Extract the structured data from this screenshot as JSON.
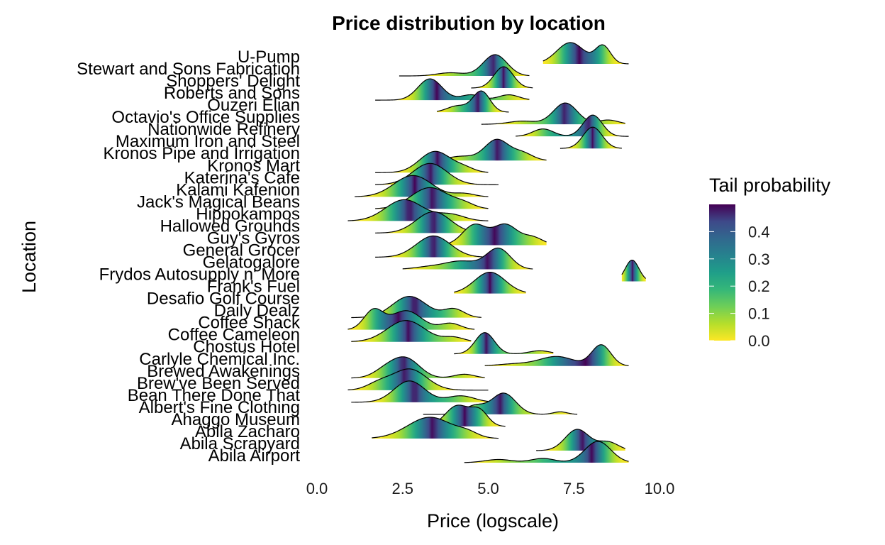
{
  "chart_data": {
    "type": "ridgeline",
    "title": "Price distribution by location",
    "xlabel": "Price (logscale)",
    "ylabel": "Location",
    "xlim": [
      0,
      10
    ],
    "x_ticks": [
      "0.0",
      "2.5",
      "5.0",
      "7.5",
      "10.0"
    ],
    "grid": false,
    "fill_scale": "viridis (reversed)",
    "legend": {
      "title": "Tail probability",
      "position": "right",
      "ticks": [
        "0.0",
        "0.1",
        "0.2",
        "0.3",
        "0.4"
      ],
      "range": [
        0,
        0.5
      ]
    },
    "locations": [
      {
        "name": "U-Pump",
        "components": [
          {
            "mu": 7.4,
            "sd": 0.4,
            "w": 0.6
          },
          {
            "mu": 8.35,
            "sd": 0.22,
            "w": 0.5
          }
        ],
        "range": [
          6.6,
          9.1
        ]
      },
      {
        "name": "Stewart and Sons Fabrication",
        "components": [
          {
            "mu": 5.2,
            "sd": 0.35,
            "w": 1.0
          },
          {
            "mu": 3.9,
            "sd": 0.4,
            "w": 0.15
          }
        ],
        "range": [
          2.4,
          6.2
        ]
      },
      {
        "name": "Shoppers' Delight",
        "components": [
          {
            "mu": 5.45,
            "sd": 0.28,
            "w": 1.0
          }
        ],
        "range": [
          4.5,
          6.3
        ]
      },
      {
        "name": "Roberts and Sons",
        "components": [
          {
            "mu": 3.3,
            "sd": 0.35,
            "w": 1.0
          },
          {
            "mu": 4.5,
            "sd": 0.3,
            "w": 0.25
          },
          {
            "mu": 5.6,
            "sd": 0.3,
            "w": 0.25
          }
        ],
        "range": [
          1.7,
          6.2
        ]
      },
      {
        "name": "Ouzeri Elian",
        "components": [
          {
            "mu": 4.8,
            "sd": 0.25,
            "w": 1.0
          },
          {
            "mu": 4.1,
            "sd": 0.3,
            "w": 0.3
          }
        ],
        "range": [
          3.5,
          5.6
        ]
      },
      {
        "name": "Octavio's Office Supplies",
        "components": [
          {
            "mu": 7.25,
            "sd": 0.35,
            "w": 1.0
          },
          {
            "mu": 6.0,
            "sd": 0.4,
            "w": 0.15
          },
          {
            "mu": 8.5,
            "sd": 0.3,
            "w": 0.2
          }
        ],
        "range": [
          4.8,
          9.0
        ]
      },
      {
        "name": "Nationwide Refinery",
        "components": [
          {
            "mu": 8.05,
            "sd": 0.28,
            "w": 1.0
          },
          {
            "mu": 6.6,
            "sd": 0.3,
            "w": 0.35
          }
        ],
        "range": [
          5.8,
          9.1
        ]
      },
      {
        "name": "Maximum Iron and Steel",
        "components": [
          {
            "mu": 8.05,
            "sd": 0.28,
            "w": 1.0
          }
        ],
        "range": [
          7.1,
          8.9
        ]
      },
      {
        "name": "Kronos Pipe and Irrigation",
        "components": [
          {
            "mu": 5.25,
            "sd": 0.35,
            "w": 1.0
          },
          {
            "mu": 6.0,
            "sd": 0.3,
            "w": 0.35
          },
          {
            "mu": 4.2,
            "sd": 0.4,
            "w": 0.2
          }
        ],
        "range": [
          3.3,
          6.7
        ]
      },
      {
        "name": "Kronos Mart",
        "components": [
          {
            "mu": 3.45,
            "sd": 0.45,
            "w": 1.0
          },
          {
            "mu": 4.3,
            "sd": 0.3,
            "w": 0.2
          }
        ],
        "range": [
          1.7,
          5.0
        ]
      },
      {
        "name": "Katerina's Cafe",
        "components": [
          {
            "mu": 3.3,
            "sd": 0.5,
            "w": 1.0
          }
        ],
        "range": [
          1.7,
          5.3
        ]
      },
      {
        "name": "Kalami Kafenion",
        "components": [
          {
            "mu": 2.8,
            "sd": 0.55,
            "w": 1.0
          },
          {
            "mu": 4.3,
            "sd": 0.3,
            "w": 0.15
          }
        ],
        "range": [
          1.1,
          5.0
        ]
      },
      {
        "name": "Jack's Magical Beans",
        "components": [
          {
            "mu": 3.3,
            "sd": 0.55,
            "w": 1.0
          },
          {
            "mu": 4.3,
            "sd": 0.3,
            "w": 0.2
          }
        ],
        "range": [
          1.7,
          5.0
        ]
      },
      {
        "name": "Hippokampos",
        "components": [
          {
            "mu": 2.55,
            "sd": 0.55,
            "w": 1.0
          },
          {
            "mu": 3.9,
            "sd": 0.4,
            "w": 0.3
          }
        ],
        "range": [
          0.9,
          5.0
        ]
      },
      {
        "name": "Hallowed Grounds",
        "components": [
          {
            "mu": 3.4,
            "sd": 0.5,
            "w": 1.0
          }
        ],
        "range": [
          1.7,
          5.0
        ]
      },
      {
        "name": "Guy's Gyros",
        "components": [
          {
            "mu": 4.6,
            "sd": 0.35,
            "w": 0.8
          },
          {
            "mu": 5.5,
            "sd": 0.35,
            "w": 0.8
          },
          {
            "mu": 6.3,
            "sd": 0.3,
            "w": 0.3
          }
        ],
        "range": [
          3.5,
          6.7
        ]
      },
      {
        "name": "General Grocer",
        "components": [
          {
            "mu": 3.4,
            "sd": 0.5,
            "w": 1.0
          }
        ],
        "range": [
          1.7,
          5.0
        ]
      },
      {
        "name": "Gelatogalore",
        "components": [
          {
            "mu": 5.3,
            "sd": 0.35,
            "w": 1.0
          },
          {
            "mu": 4.2,
            "sd": 0.5,
            "w": 0.4
          },
          {
            "mu": 3.2,
            "sd": 0.4,
            "w": 0.1
          }
        ],
        "range": [
          2.5,
          6.3
        ]
      },
      {
        "name": "Frydos Autosupply n' More",
        "components": [
          {
            "mu": 9.2,
            "sd": 0.2,
            "w": 0.4
          }
        ],
        "range": [
          8.9,
          9.6
        ]
      },
      {
        "name": "Frank's Fuel",
        "components": [
          {
            "mu": 5.05,
            "sd": 0.45,
            "w": 1.0
          }
        ],
        "range": [
          4.0,
          6.1
        ]
      },
      {
        "name": "Desafio Golf Course",
        "components": [],
        "range": [
          0,
          0
        ]
      },
      {
        "name": "Daily Dealz",
        "components": [
          {
            "mu": 2.7,
            "sd": 0.5,
            "w": 1.0
          },
          {
            "mu": 4.0,
            "sd": 0.3,
            "w": 0.4
          }
        ],
        "range": [
          1.0,
          4.8
        ]
      },
      {
        "name": "Coffee Shack",
        "components": [
          {
            "mu": 1.65,
            "sd": 0.28,
            "w": 0.9
          },
          {
            "mu": 2.6,
            "sd": 0.45,
            "w": 0.9
          },
          {
            "mu": 3.9,
            "sd": 0.3,
            "w": 0.3
          }
        ],
        "range": [
          0.9,
          4.6
        ]
      },
      {
        "name": "Coffee Cameleon",
        "components": [
          {
            "mu": 2.6,
            "sd": 0.55,
            "w": 1.0
          },
          {
            "mu": 4.0,
            "sd": 0.3,
            "w": 0.2
          }
        ],
        "range": [
          1.0,
          4.5
        ]
      },
      {
        "name": "Chostus Hotel",
        "components": [
          {
            "mu": 4.9,
            "sd": 0.28,
            "w": 1.0
          },
          {
            "mu": 6.5,
            "sd": 0.3,
            "w": 0.15
          }
        ],
        "range": [
          4.0,
          6.9
        ]
      },
      {
        "name": "Carlyle Chemical Inc.",
        "components": [
          {
            "mu": 8.3,
            "sd": 0.28,
            "w": 1.0
          },
          {
            "mu": 7.0,
            "sd": 0.5,
            "w": 0.45
          },
          {
            "mu": 5.8,
            "sd": 0.5,
            "w": 0.1
          }
        ],
        "range": [
          4.9,
          9.1
        ]
      },
      {
        "name": "Brewed Awakenings",
        "components": [
          {
            "mu": 2.6,
            "sd": 0.4,
            "w": 1.0
          },
          {
            "mu": 2.0,
            "sd": 0.35,
            "w": 0.4
          },
          {
            "mu": 4.3,
            "sd": 0.3,
            "w": 0.2
          }
        ],
        "range": [
          1.0,
          4.9
        ]
      },
      {
        "name": "Brew've Been Served",
        "components": [
          {
            "mu": 2.7,
            "sd": 0.5,
            "w": 1.0
          },
          {
            "mu": 1.8,
            "sd": 0.35,
            "w": 0.3
          }
        ],
        "range": [
          0.9,
          5.0
        ]
      },
      {
        "name": "Bean There Done That",
        "components": [
          {
            "mu": 2.7,
            "sd": 0.45,
            "w": 1.0
          },
          {
            "mu": 4.2,
            "sd": 0.4,
            "w": 0.3
          }
        ],
        "range": [
          1.0,
          5.0
        ]
      },
      {
        "name": "Albert's Fine Clothing",
        "components": [
          {
            "mu": 5.45,
            "sd": 0.35,
            "w": 1.0
          },
          {
            "mu": 4.6,
            "sd": 0.3,
            "w": 0.4
          },
          {
            "mu": 7.1,
            "sd": 0.2,
            "w": 0.12
          }
        ],
        "range": [
          3.1,
          7.6
        ]
      },
      {
        "name": "Ahaggo Museum",
        "components": [
          {
            "mu": 4.1,
            "sd": 0.35,
            "w": 1.0
          },
          {
            "mu": 4.75,
            "sd": 0.25,
            "w": 0.7
          }
        ],
        "range": [
          3.0,
          5.5
        ]
      },
      {
        "name": "Abila Zacharo",
        "components": [
          {
            "mu": 3.3,
            "sd": 0.65,
            "w": 1.0
          },
          {
            "mu": 4.4,
            "sd": 0.3,
            "w": 0.2
          }
        ],
        "range": [
          1.6,
          5.3
        ]
      },
      {
        "name": "Abila Scrapyard",
        "components": [
          {
            "mu": 7.6,
            "sd": 0.35,
            "w": 1.0
          },
          {
            "mu": 8.5,
            "sd": 0.3,
            "w": 0.4
          }
        ],
        "range": [
          6.4,
          9.0
        ]
      },
      {
        "name": "Abila Airport",
        "components": [
          {
            "mu": 8.2,
            "sd": 0.38,
            "w": 1.0
          },
          {
            "mu": 6.6,
            "sd": 0.35,
            "w": 0.2
          },
          {
            "mu": 5.3,
            "sd": 0.4,
            "w": 0.15
          }
        ],
        "range": [
          4.3,
          9.1
        ]
      }
    ]
  }
}
